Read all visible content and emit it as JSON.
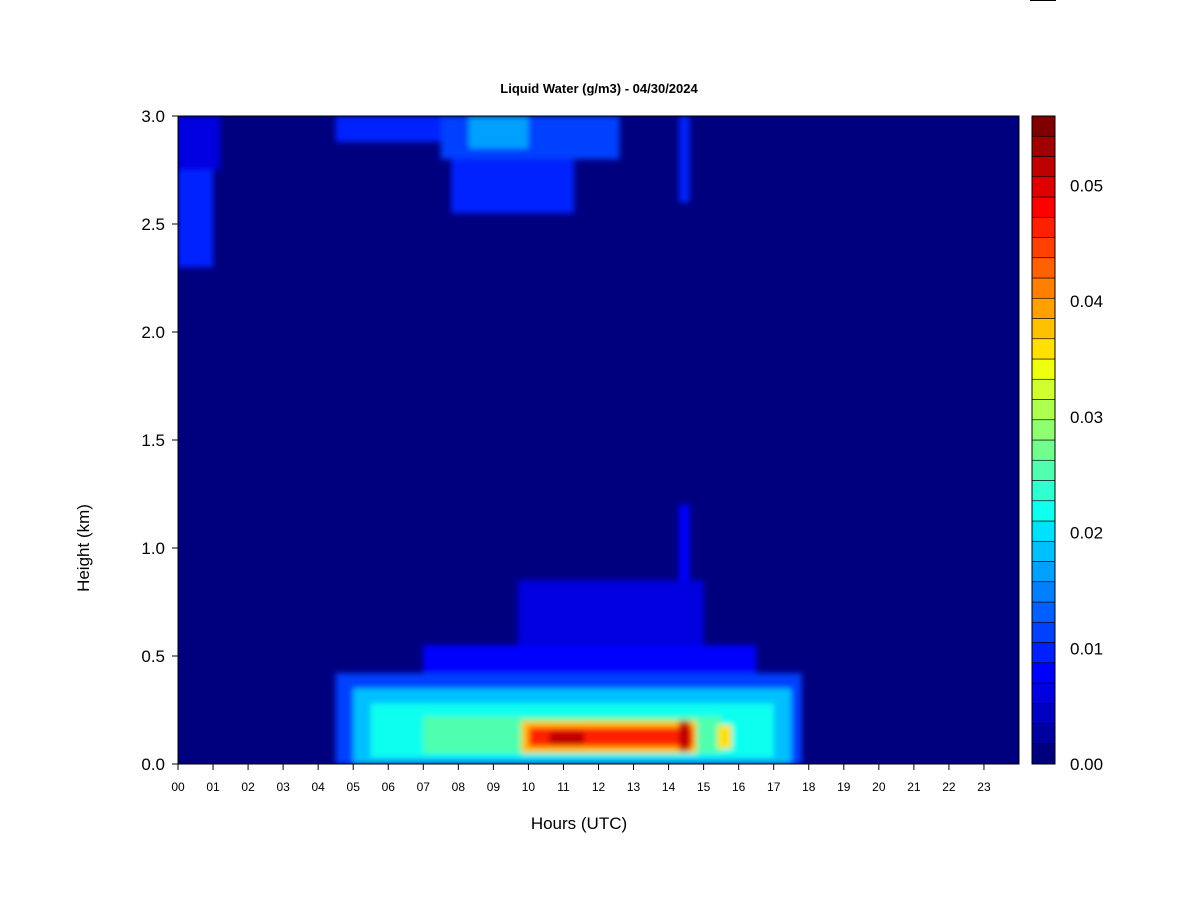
{
  "chart_data": {
    "type": "heatmap",
    "title": "Liquid Water (g/m3) - 04/30/2024",
    "xlabel": "Hours (UTC)",
    "ylabel": "Height (km)",
    "x_ticks": [
      "00",
      "01",
      "02",
      "03",
      "04",
      "05",
      "06",
      "07",
      "08",
      "09",
      "10",
      "11",
      "12",
      "13",
      "14",
      "15",
      "16",
      "17",
      "18",
      "19",
      "20",
      "21",
      "22",
      "23"
    ],
    "xlim": [
      0,
      24
    ],
    "y_ticks": [
      "0.0",
      "0.5",
      "1.0",
      "1.5",
      "2.0",
      "2.5",
      "3.0"
    ],
    "ylim": [
      0,
      3.0
    ],
    "colorbar": {
      "ticks": [
        "0.00",
        "0.01",
        "0.02",
        "0.03",
        "0.04",
        "0.05"
      ],
      "range": [
        0,
        0.056
      ],
      "levels": 28,
      "colors": [
        "#00007f",
        "#0000a0",
        "#0000c0",
        "#0000e0",
        "#0000ff",
        "#0020ff",
        "#0040ff",
        "#0060ff",
        "#0080ff",
        "#00a0ff",
        "#00c0ff",
        "#00e0ff",
        "#10ffef",
        "#30ffcf",
        "#50ffaf",
        "#70ff8f",
        "#8fff70",
        "#afff50",
        "#cfff30",
        "#efff10",
        "#ffe000",
        "#ffc000",
        "#ffa000",
        "#ff8000",
        "#ff6000",
        "#ff4000",
        "#ff2000",
        "#ff0000",
        "#df0000",
        "#bf0000",
        "#9f0000",
        "#7f0000"
      ]
    },
    "background_value": 0.0,
    "regions": [
      {
        "t0": 0.0,
        "t1": 1.0,
        "h0": 2.3,
        "h1": 2.75,
        "value": 0.009
      },
      {
        "t0": 0.0,
        "t1": 1.2,
        "h0": 2.75,
        "h1": 3.0,
        "value": 0.006
      },
      {
        "t0": 4.5,
        "t1": 7.5,
        "h0": 2.88,
        "h1": 3.0,
        "value": 0.009
      },
      {
        "t0": 7.5,
        "t1": 12.6,
        "h0": 2.8,
        "h1": 3.0,
        "value": 0.012
      },
      {
        "t0": 7.8,
        "t1": 11.3,
        "h0": 2.55,
        "h1": 2.8,
        "value": 0.01
      },
      {
        "t0": 8.3,
        "t1": 10.0,
        "h0": 2.85,
        "h1": 3.0,
        "value": 0.016
      },
      {
        "t0": 14.3,
        "t1": 14.6,
        "h0": 2.6,
        "h1": 3.0,
        "value": 0.01
      },
      {
        "t0": 4.5,
        "t1": 17.8,
        "h0": 0.0,
        "h1": 0.42,
        "value": 0.012
      },
      {
        "t0": 7.0,
        "t1": 16.5,
        "h0": 0.42,
        "h1": 0.55,
        "value": 0.008
      },
      {
        "t0": 9.7,
        "t1": 15.0,
        "h0": 0.55,
        "h1": 0.85,
        "value": 0.006
      },
      {
        "t0": 14.3,
        "t1": 14.6,
        "h0": 0.85,
        "h1": 1.2,
        "value": 0.008
      },
      {
        "t0": 5.0,
        "t1": 17.5,
        "h0": 0.0,
        "h1": 0.35,
        "value": 0.018
      },
      {
        "t0": 5.5,
        "t1": 17.0,
        "h0": 0.03,
        "h1": 0.28,
        "value": 0.022
      },
      {
        "t0": 7.0,
        "t1": 15.5,
        "h0": 0.05,
        "h1": 0.22,
        "value": 0.026
      },
      {
        "t0": 9.8,
        "t1": 14.8,
        "h0": 0.05,
        "h1": 0.2,
        "value": 0.038
      },
      {
        "t0": 10.0,
        "t1": 14.7,
        "h0": 0.08,
        "h1": 0.17,
        "value": 0.046
      },
      {
        "t0": 10.6,
        "t1": 11.6,
        "h0": 0.09,
        "h1": 0.15,
        "value": 0.052
      },
      {
        "t0": 14.3,
        "t1": 14.6,
        "h0": 0.06,
        "h1": 0.2,
        "value": 0.052
      },
      {
        "t0": 15.4,
        "t1": 15.8,
        "h0": 0.07,
        "h1": 0.18,
        "value": 0.036
      }
    ]
  }
}
